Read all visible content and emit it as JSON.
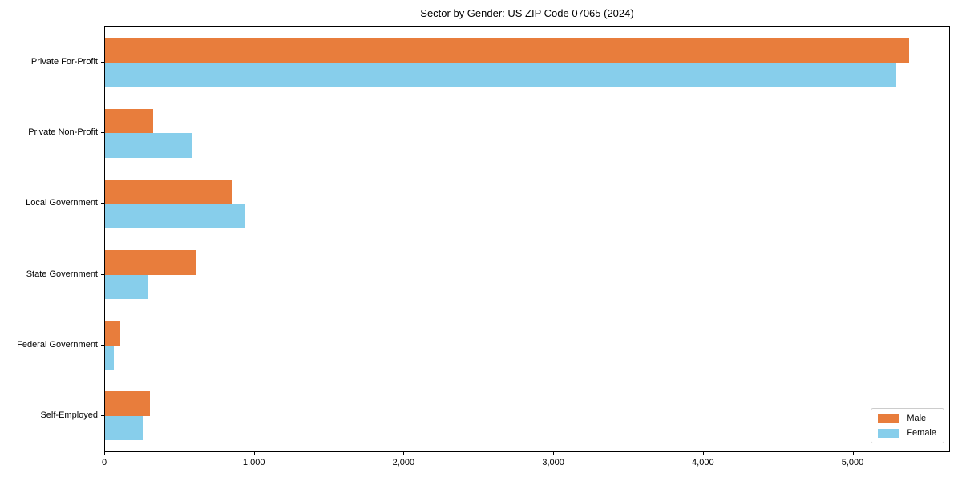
{
  "title": "Sector by Gender: US ZIP Code 07065 (2024)",
  "colors": {
    "male": "#e87d3c",
    "female": "#87ceeb",
    "axis": "#000000",
    "legend_border": "#cccccc",
    "background": "#ffffff"
  },
  "chart_data": {
    "type": "bar",
    "orientation": "horizontal",
    "title": "Sector by Gender: US ZIP Code 07065 (2024)",
    "xlabel": "",
    "ylabel": "",
    "categories": [
      "Private For-Profit",
      "Private Non-Profit",
      "Local Government",
      "State Government",
      "Federal Government",
      "Self-Employed"
    ],
    "series": [
      {
        "name": "Male",
        "color": "#e87d3c",
        "values": [
          5370,
          320,
          845,
          605,
          100,
          300
        ]
      },
      {
        "name": "Female",
        "color": "#87ceeb",
        "values": [
          5285,
          585,
          935,
          290,
          60,
          255
        ]
      }
    ],
    "xlim": [
      0,
      5640
    ],
    "x_ticks": [
      0,
      1000,
      2000,
      3000,
      4000,
      5000
    ],
    "x_tick_labels": [
      "0",
      "1,000",
      "2,000",
      "3,000",
      "4,000",
      "5,000"
    ],
    "grid": false,
    "legend_position": "lower right"
  },
  "legend": {
    "items": [
      {
        "label": "Male"
      },
      {
        "label": "Female"
      }
    ]
  }
}
